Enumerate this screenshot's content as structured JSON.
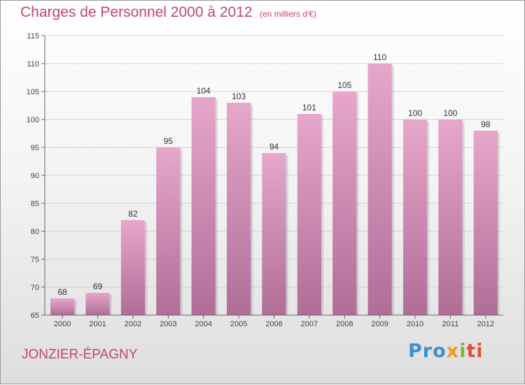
{
  "header": {
    "title": "Charges de Personnel 2000 à 2012",
    "subtitle": "(en milliers d'€)"
  },
  "footer": {
    "commune": "JONZIER-ÉPAGNY",
    "logo": [
      "Pro",
      "x",
      "i",
      "ti"
    ]
  },
  "colors": {
    "bar_top": "#e6a7cb",
    "bar_bottom": "#b06e97",
    "text_accent": "#c0456e"
  },
  "chart_data": {
    "type": "bar",
    "title": "Charges de Personnel 2000 à 2012",
    "subtitle": "(en milliers d'€)",
    "categories": [
      "2000",
      "2001",
      "2002",
      "2003",
      "2004",
      "2005",
      "2006",
      "2007",
      "2008",
      "2009",
      "2010",
      "2011",
      "2012"
    ],
    "values": [
      68,
      69,
      82,
      95,
      104,
      103,
      94,
      101,
      105,
      110,
      100,
      100,
      98
    ],
    "ylim": [
      65,
      115
    ],
    "yticks": [
      65,
      70,
      75,
      80,
      85,
      90,
      95,
      100,
      105,
      110,
      115
    ],
    "grid": true,
    "xlabel": "",
    "ylabel": ""
  }
}
